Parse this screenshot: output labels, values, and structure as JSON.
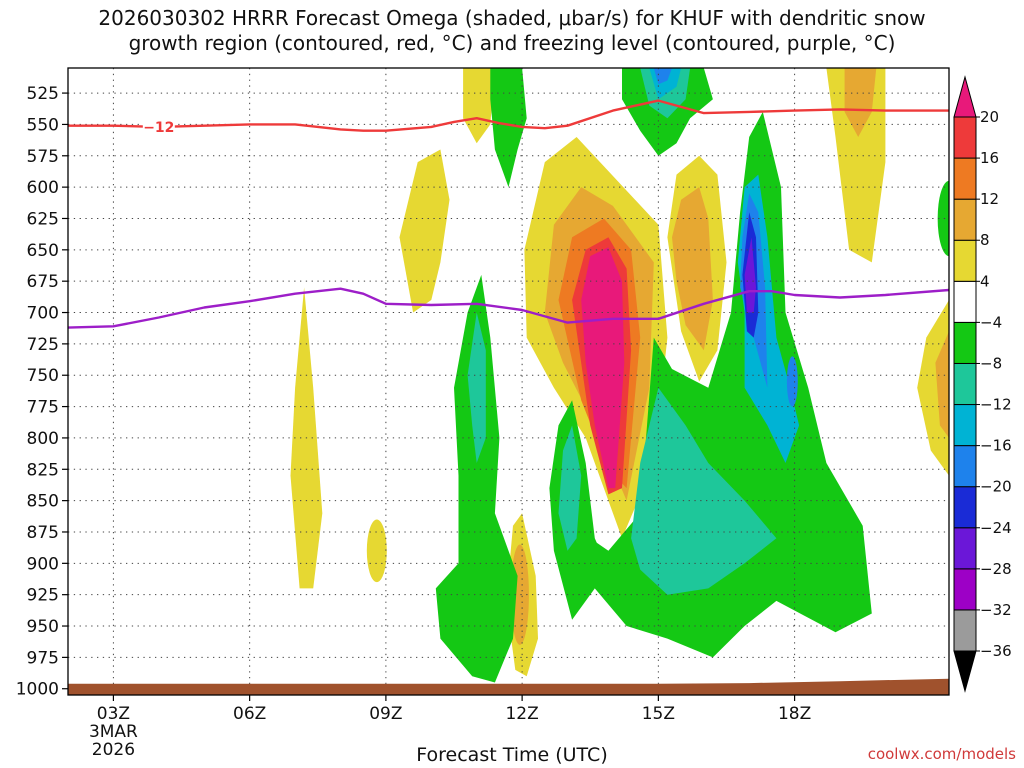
{
  "title_line1": "2026030302 HRRR Forecast Omega (shaded, μbar/s) for KHUF with dendritic snow",
  "title_line2": "growth region (contoured, red, °C) and freezing level (contoured, purple, °C)",
  "credit": "coolwx.com/models",
  "chart_data": {
    "type": "time-height contour",
    "xlabel": "Forecast Time (UTC)",
    "ylabel": "",
    "xlim": [
      2,
      21.4
    ],
    "ylim": [
      1005,
      505
    ],
    "x_ticks": [
      {
        "x": 3,
        "label": "03Z"
      },
      {
        "x": 6,
        "label": "06Z"
      },
      {
        "x": 9,
        "label": "09Z"
      },
      {
        "x": 12,
        "label": "12Z"
      },
      {
        "x": 15,
        "label": "15Z"
      },
      {
        "x": 18,
        "label": "18Z"
      }
    ],
    "x_date_label": [
      "3MAR",
      "2026"
    ],
    "y_ticks": [
      525,
      550,
      575,
      600,
      625,
      650,
      675,
      700,
      725,
      750,
      775,
      800,
      825,
      850,
      875,
      900,
      925,
      950,
      975,
      1000
    ],
    "grid": "dotted",
    "colorbar": {
      "boundaries": [
        -36,
        -32,
        -28,
        -24,
        -20,
        -16,
        -12,
        -8,
        -4,
        4,
        8,
        12,
        16,
        20
      ],
      "labels": [
        "20",
        "16",
        "12",
        "8",
        "4",
        "−4",
        "−8",
        "−12",
        "−16",
        "−20",
        "−24",
        "−28",
        "−32",
        "−36"
      ],
      "colors": [
        "#9b9b9b",
        "#9d00c6",
        "#6b17d8",
        "#1a2bd6",
        "#1e82ec",
        "#00b3d4",
        "#1ec79a",
        "#14c814",
        "#ffffff",
        "#e6d832",
        "#e6a832",
        "#ee7a22",
        "#ee3a3a"
      ],
      "over_color": "#e8197a",
      "under_color": "#000000"
    },
    "omega_features": [
      {
        "label": "upper green band",
        "x": 11.5,
        "p": 560,
        "value": -6
      },
      {
        "label": "blue jet core",
        "x": 15.0,
        "p": 520,
        "value": -22
      },
      {
        "label": "main ascent core",
        "x": 14.0,
        "p": 690,
        "value": 24
      },
      {
        "label": "orange lobe",
        "x": 15.8,
        "p": 640,
        "value": 10
      },
      {
        "label": "purple core",
        "x": 17.0,
        "p": 680,
        "value": -26
      },
      {
        "label": "lower teal region",
        "x": 16.0,
        "p": 860,
        "value": -12
      },
      {
        "label": "green band 11Z",
        "x": 11.0,
        "p": 800,
        "value": -8
      },
      {
        "label": "yellow streak 07Z",
        "x": 7.2,
        "p": 800,
        "value": 5
      },
      {
        "label": "orange lobe 12Z",
        "x": 12.0,
        "p": 925,
        "value": 9
      }
    ],
    "series": [
      {
        "name": "-12",
        "color": "#ee3a3a",
        "label": "−12",
        "x": [
          2,
          3,
          4,
          5,
          6,
          7,
          8,
          8.5,
          9,
          10,
          10.5,
          11,
          11.5,
          12,
          12.5,
          13,
          14,
          15,
          16,
          17,
          18,
          19,
          20,
          21.4
        ],
        "p": [
          551,
          551,
          552,
          551,
          550,
          550,
          554,
          555,
          555,
          552,
          548,
          545,
          549,
          552,
          553,
          551,
          539,
          531,
          541,
          540,
          539,
          538,
          539,
          539
        ]
      },
      {
        "name": "0",
        "color": "#9d1ec8",
        "x": [
          2,
          3,
          4,
          5,
          6,
          7,
          8,
          8.5,
          9,
          10,
          11,
          12,
          13,
          14,
          15,
          16,
          17,
          17.5,
          18,
          19,
          20,
          21.4
        ],
        "p": [
          712,
          711,
          704,
          696,
          691,
          685,
          681,
          685,
          693,
          694,
          693,
          698,
          708,
          705,
          705,
          693,
          683,
          683,
          686,
          688,
          686,
          682
        ]
      }
    ],
    "terrain": {
      "color": "#a0522d",
      "x": [
        2,
        15,
        17,
        19,
        21.4
      ],
      "top_p": [
        1000,
        1000,
        999.5,
        998,
        996
      ]
    }
  }
}
